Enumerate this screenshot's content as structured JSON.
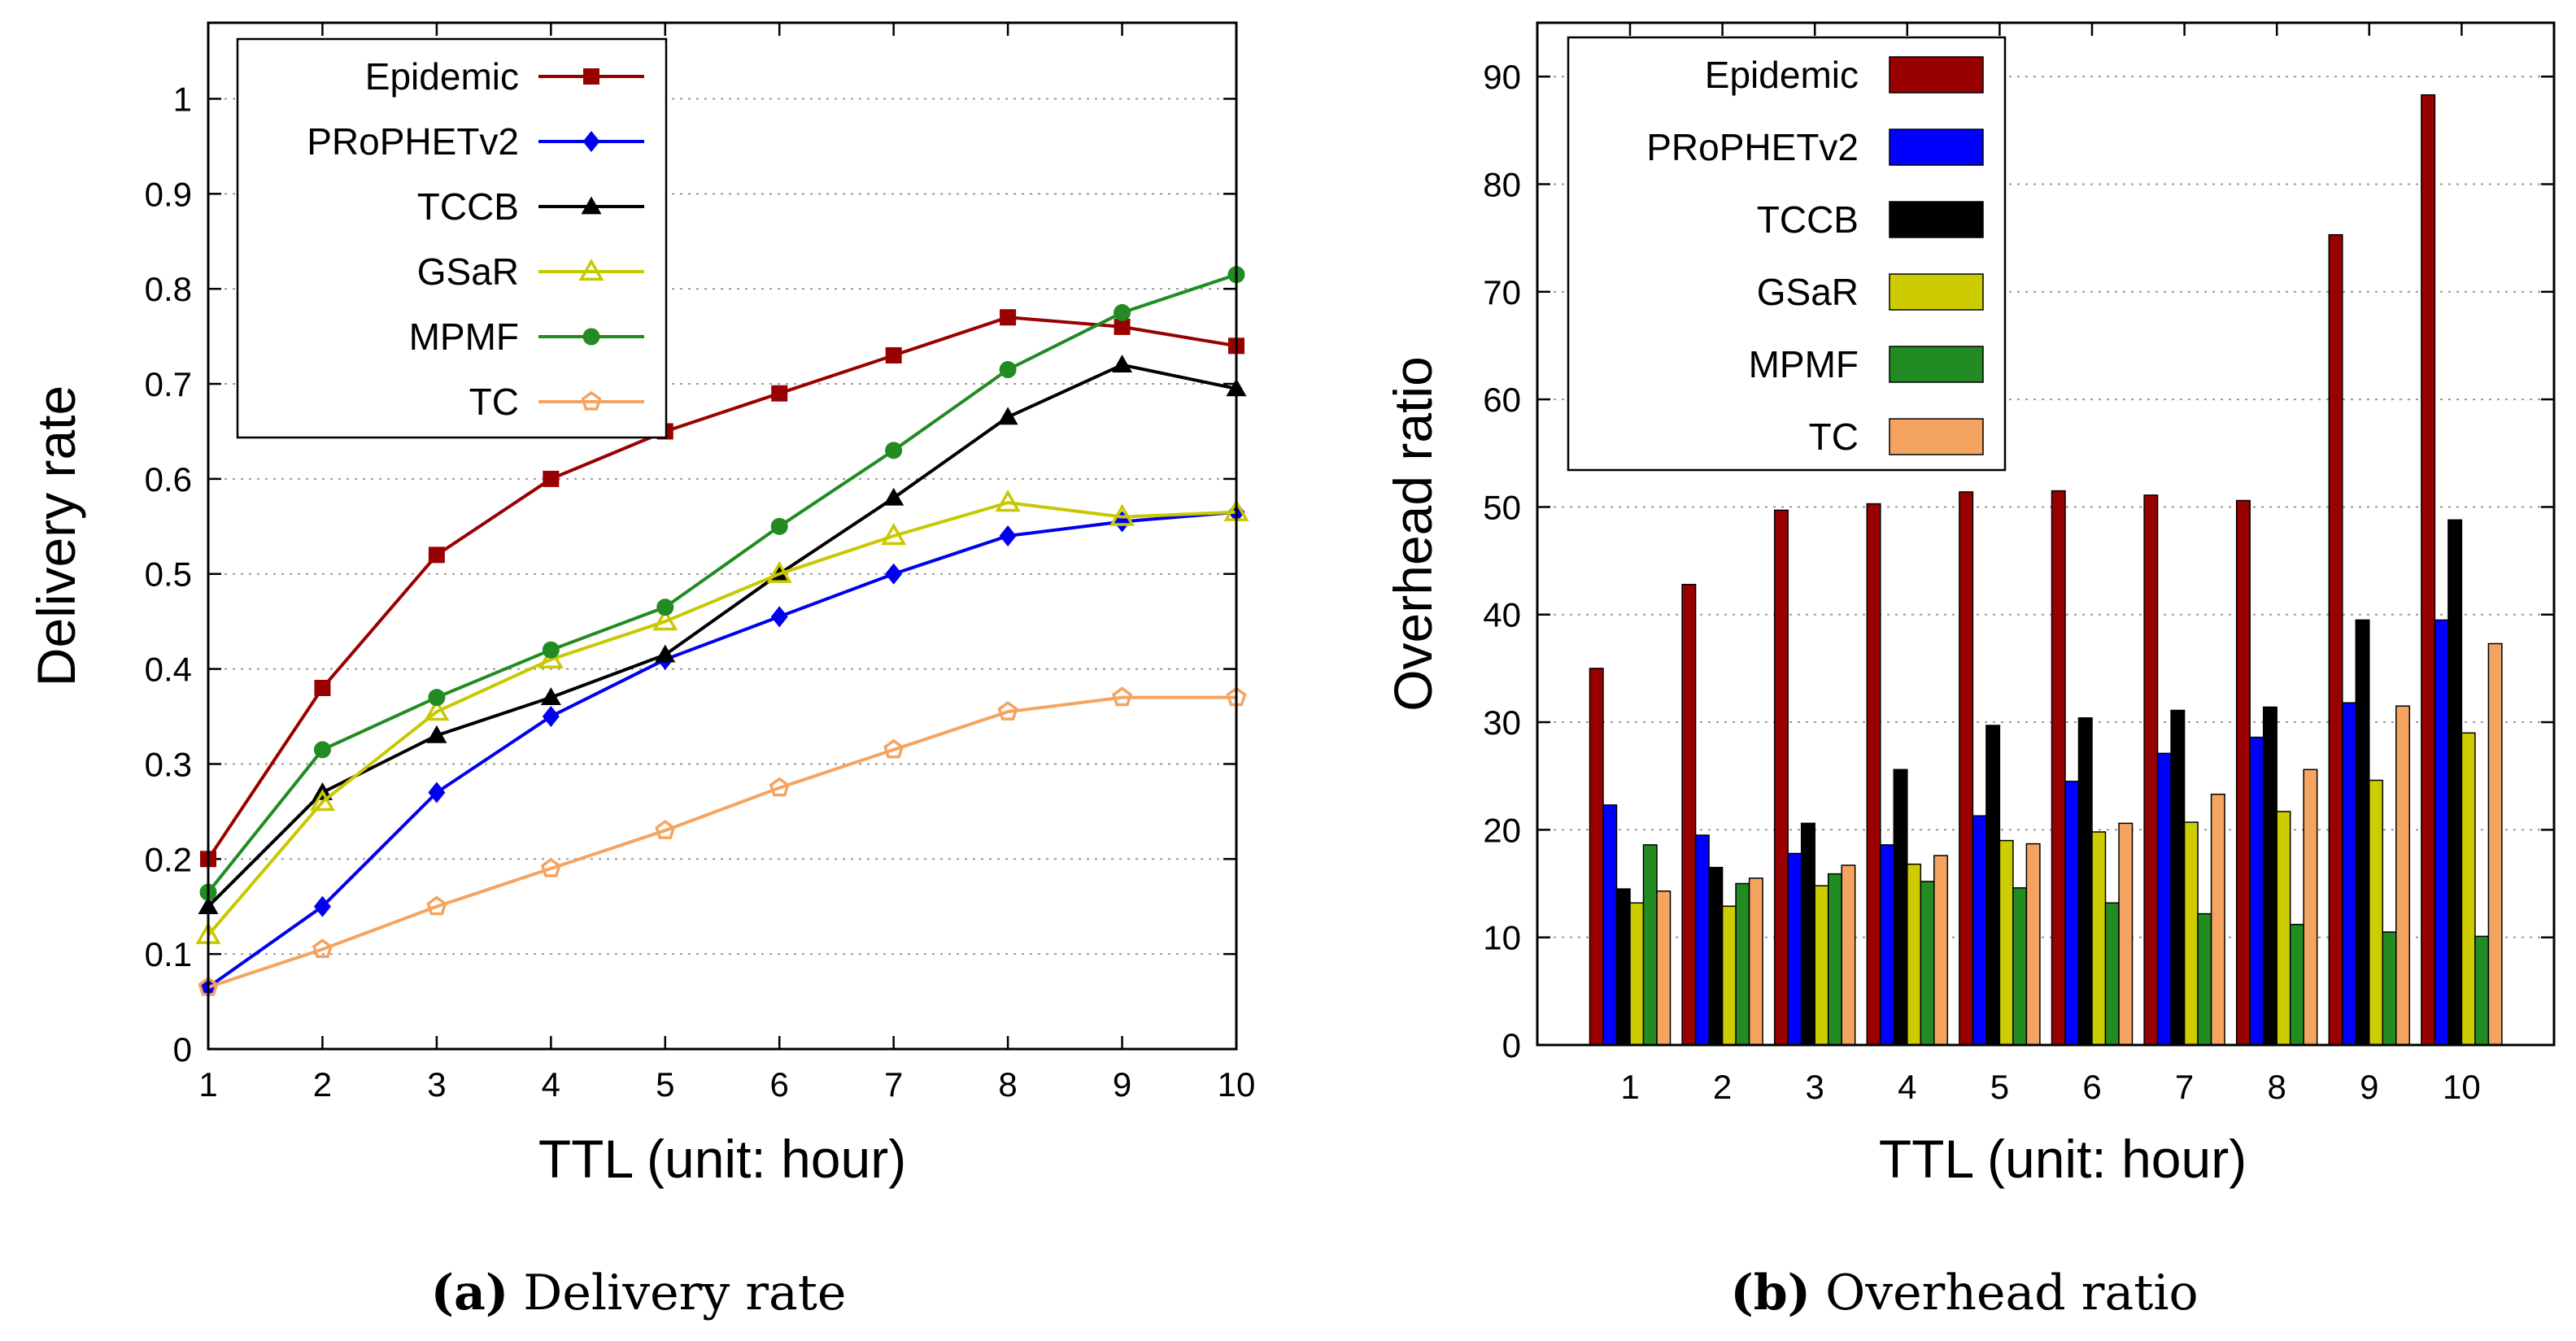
{
  "chart_data": [
    {
      "type": "line",
      "x": [
        1,
        2,
        3,
        4,
        5,
        6,
        7,
        8,
        9,
        10
      ],
      "xticks": [
        "1",
        "2",
        "3",
        "4",
        "5",
        "6",
        "7",
        "8",
        "9",
        "10"
      ],
      "yticks": [
        "0",
        "0.1",
        "0.2",
        "0.3",
        "0.4",
        "0.5",
        "0.6",
        "0.7",
        "0.8",
        "0.9",
        "1"
      ],
      "xlim": [
        1,
        10
      ],
      "ylim": [
        0,
        1.08
      ],
      "xlabel": "TTL (unit: hour)",
      "ylabel": "Delivery rate",
      "grid": "horizontal dotted",
      "legend_position": "top-left",
      "caption_label": "(a)",
      "caption_text": "Delivery rate",
      "series": [
        {
          "name": "Epidemic",
          "color": "#990000",
          "marker": "filled-square",
          "values": [
            0.2,
            0.38,
            0.52,
            0.6,
            0.65,
            0.69,
            0.73,
            0.77,
            0.76,
            0.74
          ]
        },
        {
          "name": "PRoPHETv2",
          "color": "#0000ee",
          "marker": "filled-diamond",
          "values": [
            0.065,
            0.15,
            0.27,
            0.35,
            0.41,
            0.455,
            0.5,
            0.54,
            0.555,
            0.565
          ]
        },
        {
          "name": "TCCB",
          "color": "#000000",
          "marker": "filled-triangle",
          "values": [
            0.15,
            0.27,
            0.33,
            0.37,
            0.415,
            0.5,
            0.58,
            0.665,
            0.72,
            0.695
          ]
        },
        {
          "name": "GSaR",
          "color": "#c8c800",
          "marker": "open-triangle",
          "values": [
            0.12,
            0.26,
            0.355,
            0.41,
            0.45,
            0.5,
            0.54,
            0.575,
            0.56,
            0.565
          ]
        },
        {
          "name": "MPMF",
          "color": "#228b22",
          "marker": "filled-circle",
          "values": [
            0.165,
            0.315,
            0.37,
            0.42,
            0.465,
            0.55,
            0.63,
            0.715,
            0.775,
            0.815
          ]
        },
        {
          "name": "TC",
          "color": "#f4a460",
          "marker": "open-pentagon",
          "values": [
            0.065,
            0.105,
            0.15,
            0.19,
            0.23,
            0.275,
            0.315,
            0.355,
            0.37,
            0.37
          ]
        }
      ]
    },
    {
      "type": "bar",
      "categories": [
        "1",
        "2",
        "3",
        "4",
        "5",
        "6",
        "7",
        "8",
        "9",
        "10"
      ],
      "yticks": [
        "0",
        "10",
        "20",
        "30",
        "40",
        "50",
        "60",
        "70",
        "80",
        "90"
      ],
      "ylim": [
        0,
        95
      ],
      "xlabel": "TTL (unit: hour)",
      "ylabel": "Overhead ratio",
      "grid": "horizontal dotted",
      "legend_position": "top-left",
      "caption_label": "(b)",
      "caption_text": "Overhead ratio",
      "series": [
        {
          "name": "Epidemic",
          "color": "#990000",
          "values": [
            35,
            42.8,
            49.7,
            50.3,
            51.4,
            51.5,
            51.1,
            50.6,
            75.3,
            88.3
          ]
        },
        {
          "name": "PRoPHETv2",
          "color": "#0000ff",
          "values": [
            22.3,
            19.5,
            17.8,
            18.6,
            21.3,
            24.5,
            27.1,
            28.6,
            31.8,
            39.5
          ]
        },
        {
          "name": "TCCB",
          "color": "#000000",
          "values": [
            14.5,
            16.5,
            20.6,
            25.6,
            29.7,
            30.4,
            31.1,
            31.4,
            39.5,
            48.8
          ]
        },
        {
          "name": "GSaR",
          "color": "#cccc00",
          "values": [
            13.2,
            12.9,
            14.8,
            16.8,
            19,
            19.8,
            20.7,
            21.7,
            24.6,
            29
          ]
        },
        {
          "name": "MPMF",
          "color": "#228b22",
          "values": [
            18.6,
            15,
            15.9,
            15.2,
            14.6,
            13.2,
            12.2,
            11.2,
            10.5,
            10.1
          ]
        },
        {
          "name": "TC",
          "color": "#f4a460",
          "values": [
            14.3,
            15.5,
            16.7,
            17.6,
            18.7,
            20.6,
            23.3,
            25.6,
            31.5,
            37.3
          ]
        }
      ]
    }
  ]
}
